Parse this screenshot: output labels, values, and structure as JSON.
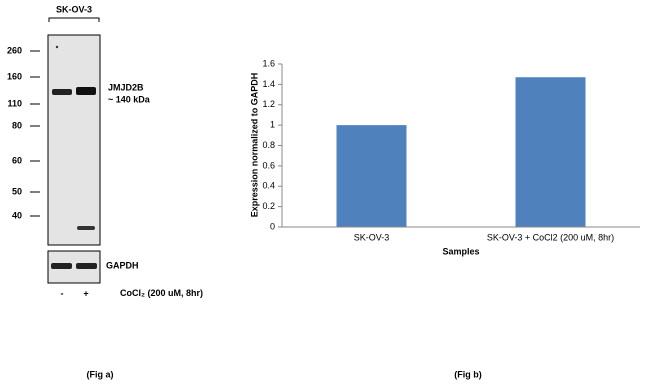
{
  "blot": {
    "header": "SK-OV-3",
    "markers": [
      260,
      160,
      110,
      80,
      60,
      50,
      40
    ],
    "target": "JMJD2B",
    "target_size": "~ 140 kDa",
    "control": "GAPDH",
    "lanes": [
      "-",
      "+"
    ],
    "treatment": "CoCl₂ (200 uM, 8hr)",
    "caption": "(Fig a)"
  },
  "chart_data": {
    "type": "bar",
    "categories": [
      "SK-OV-3",
      "SK-OV-3 + CoCl2 (200 uM, 8hr)"
    ],
    "values": [
      1,
      1.47
    ],
    "color": "#4f81bd",
    "ylim": [
      0,
      1.6
    ],
    "yticks": [
      0,
      0.2,
      0.4,
      0.6,
      0.8,
      1,
      1.2,
      1.4,
      1.6
    ],
    "x_label": "Samples",
    "y_label": "Expression  normalized to GAPDH",
    "caption": "(Fig b)"
  }
}
